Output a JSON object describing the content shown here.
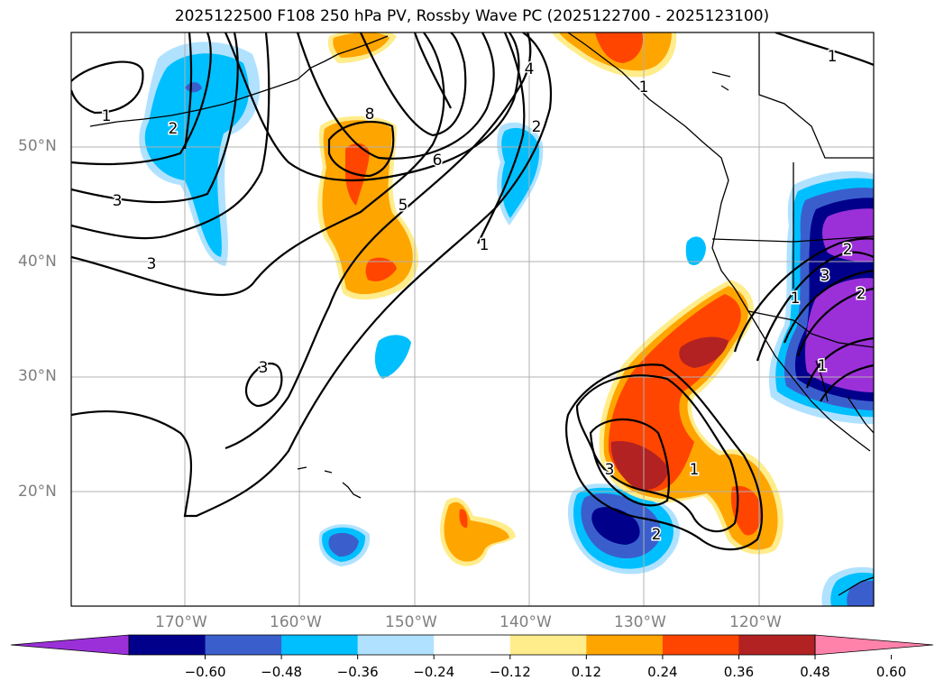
{
  "title": "2025122500 F108 250 hPa PV, Rossby Wave PC (2025122700 - 2025123100)",
  "lat_labels": [
    "50°N",
    "40°N",
    "30°N",
    "20°N"
  ],
  "lon_labels": [
    "170°W",
    "160°W",
    "150°W",
    "140°W",
    "130°W",
    "120°W"
  ],
  "contour_labels": [
    "1",
    "1",
    "2",
    "3",
    "3",
    "3",
    "8",
    "6",
    "5",
    "4",
    "2",
    "1",
    "1",
    "3",
    "1",
    "2",
    "1",
    "2",
    "3",
    "2",
    "1"
  ],
  "colorbar": {
    "ticks": [
      "−0.60",
      "−0.48",
      "−0.36",
      "−0.24",
      "−0.12",
      "0.12",
      "0.24",
      "0.36",
      "0.48",
      "0.60"
    ],
    "colors": [
      "#9b30d9",
      "#00008b",
      "#3a5fcd",
      "#00bfff",
      "#b0e2ff",
      "#ffffff",
      "#ffec8b",
      "#ffa500",
      "#ff4500",
      "#b22222",
      "#ff82ab"
    ]
  }
}
